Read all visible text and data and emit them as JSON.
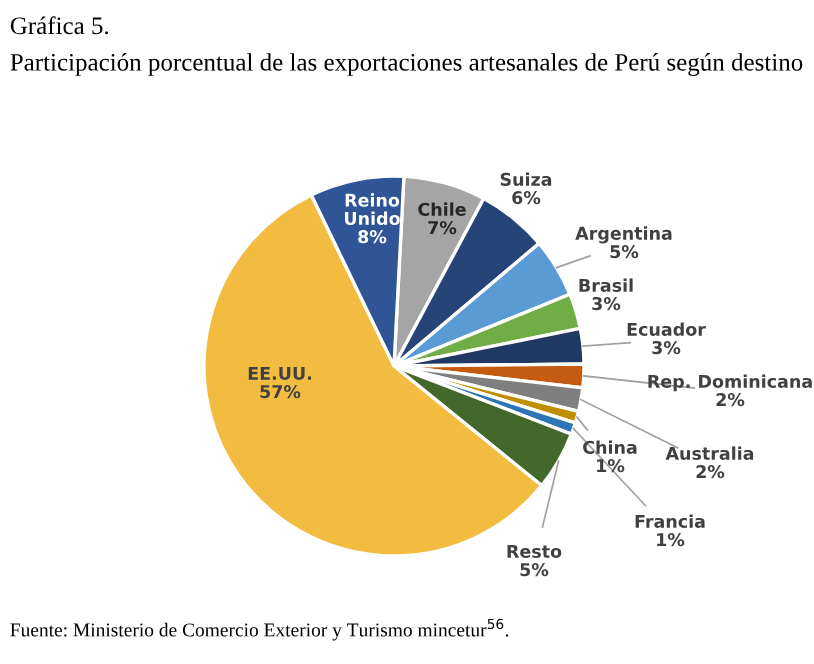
{
  "chart_data": {
    "type": "pie",
    "title": "Gráfica 5.",
    "subtitle": "Participación porcentual de las exportaciones artesanales de Perú según destino",
    "categories": [
      "Chile",
      "Suiza",
      "Argentina",
      "Brasil",
      "Ecuador",
      "Rep. Dominicana",
      "Australia",
      "China",
      "Francia",
      "Resto",
      "EE.UU.",
      "Reino Unido"
    ],
    "values": [
      7,
      6,
      5,
      3,
      3,
      2,
      2,
      1,
      1,
      5,
      57,
      8
    ],
    "colors": [
      "#a5a5a5",
      "#264478",
      "#5b9bd5",
      "#70ad47",
      "#1f3864",
      "#c55a11",
      "#7f7f7f",
      "#bf8f00",
      "#2e75b6",
      "#43682b",
      "#f2bc41",
      "#2f5597"
    ],
    "value_labels": [
      "7%",
      "6%",
      "5%",
      "3%",
      "3%",
      "2%",
      "2%",
      "1%",
      "1%",
      "5%",
      "57%",
      "8%"
    ],
    "annotations": [
      "Fuente: Ministerio de Comercio Exterior y Turismo mincetur$^{56}$."
    ]
  }
}
